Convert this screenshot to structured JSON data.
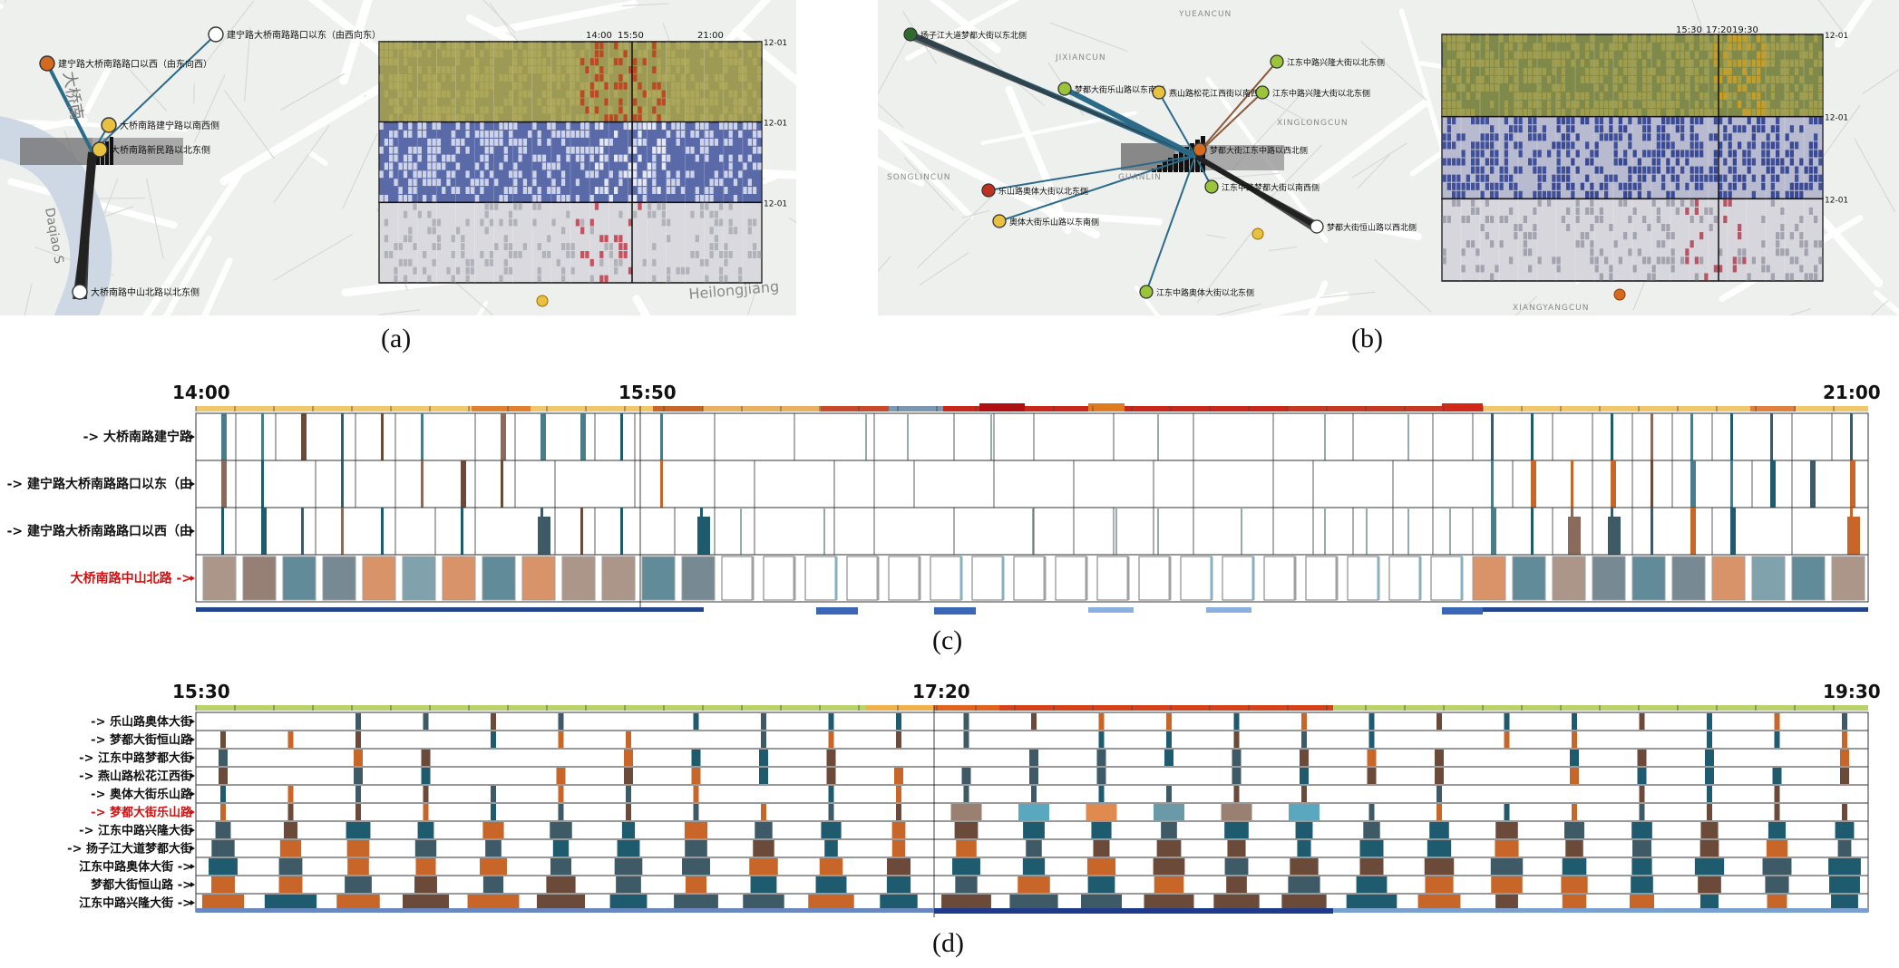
{
  "captions": {
    "a": "(a)",
    "b": "(b)",
    "c": "(c)",
    "d": "(d)"
  },
  "map_a": {
    "nodes": [
      {
        "label": "建宁路大桥南路路口以西（由东向西）",
        "color": "#d46a1f"
      },
      {
        "label": "建宁路大桥南路路口以东（由西向东）",
        "color": "#ffffff"
      },
      {
        "label": "大桥南路建宁路以南西侧",
        "color": "#e8c140"
      },
      {
        "label": "大桥南路新民路以北东侧",
        "color": "#e8c140"
      },
      {
        "label": "大桥南路中山北路以北东侧",
        "color": "#ffffff"
      }
    ],
    "place_labels": [
      "大桥南",
      "Daqiao S",
      "Heilongjiang"
    ],
    "matrix_ticks": [
      "14:00",
      "15:50",
      "21:00"
    ],
    "row_dates": [
      "12-01",
      "12-01",
      "12-01"
    ]
  },
  "map_b": {
    "nodes": [
      {
        "label": "扬子江大道梦都大街以东北侧",
        "color": "#2e6b2e"
      },
      {
        "label": "梦都大街乐山路以东南侧",
        "color": "#9ac43a"
      },
      {
        "label": "燕山路松花江西街以南西侧",
        "color": "#e8c140"
      },
      {
        "label": "江东中路兴隆大街以北东侧",
        "color": "#9ac43a"
      },
      {
        "label": "江东中路兴隆大街以北东侧",
        "color": "#9ac43a"
      },
      {
        "label": "梦都大街江东中路以西北侧",
        "color": "#d46a1f"
      },
      {
        "label": "乐山路奥体大街以北东侧",
        "color": "#c03020"
      },
      {
        "label": "奥体大街乐山路以东南侧",
        "color": "#e8c140"
      },
      {
        "label": "江东中路梦都大街以南西侧",
        "color": "#9ac43a"
      },
      {
        "label": "梦都大街恒山路以西北侧",
        "color": "#ffffff"
      },
      {
        "label": "江东中路奥体大街以北东侧",
        "color": "#9ac43a"
      }
    ],
    "place_labels": [
      "YUEANCUN",
      "JIXIANCUN",
      "XINGLONGCUN",
      "GUANLIN",
      "SONGLINCUN",
      "XIANGYANGCUN"
    ],
    "matrix_ticks": [
      "15:30",
      "17:20",
      "19:30"
    ],
    "row_dates": [
      "12-01",
      "12-01",
      "12-01"
    ]
  },
  "timeline_c": {
    "start": "14:00",
    "mid": "15:50",
    "end": "21:00",
    "rows": [
      {
        "label": "-> 大桥南路建宁路",
        "highlight": false
      },
      {
        "label": "-> 建宁路大桥南路路口以东（由",
        "highlight": false
      },
      {
        "label": "-> 建宁路大桥南路路口以西（由",
        "highlight": false
      },
      {
        "label": "大桥南路中山北路 ->",
        "highlight": true
      }
    ]
  },
  "timeline_d": {
    "start": "15:30",
    "mid": "17:20",
    "end": "19:30",
    "rows": [
      {
        "label": "-> 乐山路奥体大街",
        "highlight": false
      },
      {
        "label": "-> 梦都大街恒山路",
        "highlight": false
      },
      {
        "label": "-> 江东中路梦都大街",
        "highlight": false
      },
      {
        "label": "-> 燕山路松花江西街",
        "highlight": false
      },
      {
        "label": "-> 奥体大街乐山路",
        "highlight": false
      },
      {
        "label": "-> 梦都大街乐山路",
        "highlight": true
      },
      {
        "label": "-> 江东中路兴隆大街",
        "highlight": false
      },
      {
        "label": "-> 扬子江大道梦都大街",
        "highlight": false
      },
      {
        "label": "江东中路奥体大街 ->",
        "highlight": false
      },
      {
        "label": "梦都大街恒山路 ->",
        "highlight": false
      },
      {
        "label": "江东中路兴隆大街 ->",
        "highlight": false
      }
    ]
  },
  "colors": {
    "teal": "#1f5b6e",
    "brown": "#6b4a3a",
    "orange": "#c8662a",
    "slate": "#3e5a66",
    "high_red": "#c7281a",
    "light_blue": "#5aa0b5",
    "highlight_text": "#d01010",
    "yellow_band": "#f0c060",
    "green_band": "#b9d36a",
    "navy": "#1e3a8a"
  }
}
